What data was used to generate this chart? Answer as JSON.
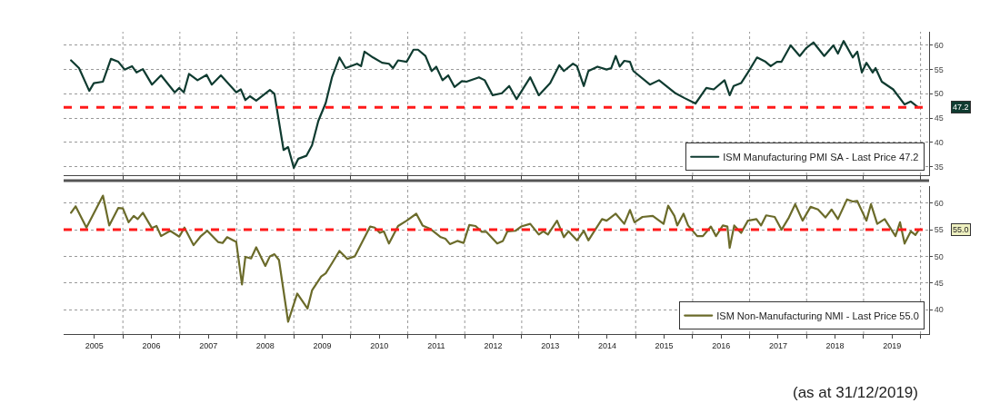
{
  "chart_data": [
    {
      "type": "line",
      "xlim": [
        2004.96,
        2020.15
      ],
      "ylim": [
        33.2,
        62.8
      ],
      "yticks": [
        35,
        40,
        45,
        50,
        55,
        60
      ],
      "tick_labels": "y",
      "grid": true,
      "legend": "bottom right",
      "line_style": "solid",
      "xticks": [
        {
          "value": 2006,
          "label": null
        },
        {
          "value": 2007,
          "label": null
        },
        {
          "value": 2008,
          "label": null
        },
        {
          "value": 2009,
          "label": null
        },
        {
          "value": 2010,
          "label": null
        },
        {
          "value": 2011,
          "label": null
        },
        {
          "value": 2012,
          "label": null
        },
        {
          "value": 2013,
          "label": null
        },
        {
          "value": 2014,
          "label": null
        },
        {
          "value": 2015,
          "label": null
        },
        {
          "value": 2016,
          "label": null
        },
        {
          "value": 2017,
          "label": null
        },
        {
          "value": 2018,
          "label": null
        },
        {
          "value": 2019,
          "label": null
        },
        {
          "value": 2020,
          "label": null
        }
      ],
      "ref_lines": [
        {
          "axis": "y",
          "value": 47.2,
          "label": "47.2",
          "color": "#ff1a1a",
          "line_style": "dashed"
        }
      ],
      "series": [
        {
          "name": "ISM Manufacturing PMI SA - Last Price 47.2",
          "color": "#0f3b30",
          "x": [
            2005.09,
            2005.23,
            2005.41,
            2005.49,
            2005.65,
            2005.79,
            2005.92,
            2006.03,
            2006.16,
            2006.24,
            2006.35,
            2006.51,
            2006.67,
            2006.91,
            2006.99,
            2007.07,
            2007.16,
            2007.31,
            2007.47,
            2007.56,
            2007.72,
            2007.99,
            2008.07,
            2008.15,
            2008.23,
            2008.34,
            2008.58,
            2008.66,
            2008.82,
            2008.9,
            2009.0,
            2009.08,
            2009.22,
            2009.32,
            2009.43,
            2009.56,
            2009.67,
            2009.8,
            2009.91,
            2010.11,
            2010.18,
            2010.24,
            2010.39,
            2010.55,
            2010.67,
            2010.74,
            2010.83,
            2010.98,
            2011.1,
            2011.18,
            2011.31,
            2011.42,
            2011.5,
            2011.61,
            2011.71,
            2011.82,
            2011.95,
            2012.03,
            2012.25,
            2012.35,
            2012.49,
            2012.65,
            2012.78,
            2012.91,
            2013.15,
            2013.3,
            2013.5,
            2013.66,
            2013.74,
            2013.9,
            2013.97,
            2014.09,
            2014.17,
            2014.33,
            2014.49,
            2014.57,
            2014.65,
            2014.72,
            2014.8,
            2014.9,
            2014.96,
            2015.25,
            2015.41,
            2015.54,
            2015.7,
            2015.86,
            2016.05,
            2016.24,
            2016.37,
            2016.56,
            2016.65,
            2016.72,
            2016.85,
            2016.97,
            2017.13,
            2017.28,
            2017.37,
            2017.48,
            2017.56,
            2017.72,
            2017.88,
            2017.99,
            2018.12,
            2018.31,
            2018.47,
            2018.55,
            2018.65,
            2018.81,
            2018.89,
            2018.97,
            2019.05,
            2019.16,
            2019.21,
            2019.32,
            2019.52,
            2019.72,
            2019.83,
            2019.96
          ],
          "values": [
            56.9,
            55.3,
            50.6,
            52.2,
            52.5,
            57.2,
            56.6,
            55.0,
            55.7,
            54.4,
            55.1,
            51.9,
            53.8,
            50.3,
            51.2,
            50.3,
            54.1,
            52.8,
            53.9,
            51.9,
            53.8,
            50.3,
            50.9,
            48.7,
            49.5,
            48.6,
            50.8,
            50.0,
            38.4,
            39.0,
            34.7,
            36.6,
            37.2,
            39.4,
            44.4,
            48.1,
            53.4,
            57.5,
            55.3,
            56.2,
            55.7,
            58.7,
            57.5,
            56.4,
            56.2,
            55.3,
            56.9,
            56.6,
            59.1,
            59.1,
            57.8,
            54.7,
            55.6,
            52.8,
            53.8,
            51.4,
            52.6,
            52.5,
            53.4,
            52.8,
            49.7,
            50.1,
            51.6,
            48.9,
            53.4,
            49.7,
            52.2,
            55.9,
            54.7,
            56.2,
            55.7,
            51.6,
            54.7,
            55.6,
            55.0,
            55.3,
            57.8,
            55.6,
            56.8,
            56.6,
            54.7,
            51.9,
            52.8,
            51.6,
            50.1,
            49.1,
            48.0,
            51.2,
            50.9,
            52.8,
            49.7,
            51.6,
            52.2,
            54.4,
            57.5,
            56.6,
            55.7,
            56.6,
            56.6,
            60.0,
            57.8,
            59.4,
            60.6,
            57.8,
            60.0,
            58.3,
            60.9,
            57.5,
            58.7,
            54.4,
            56.4,
            54.4,
            55.3,
            52.5,
            50.9,
            47.8,
            48.4,
            47.2
          ]
        }
      ]
    },
    {
      "type": "line",
      "xlim": [
        2004.96,
        2020.15
      ],
      "ylim": [
        35.4,
        63.2
      ],
      "yticks": [
        40,
        45,
        50,
        55,
        60
      ],
      "grid": true,
      "legend": "bottom right",
      "line_style": "solid",
      "xticks": [
        {
          "value": 2005.5,
          "label": "2005"
        },
        {
          "value": 2006,
          "label": null
        },
        {
          "value": 2006.5,
          "label": "2006"
        },
        {
          "value": 2007,
          "label": null
        },
        {
          "value": 2007.5,
          "label": "2007"
        },
        {
          "value": 2008,
          "label": null
        },
        {
          "value": 2008.5,
          "label": "2008"
        },
        {
          "value": 2009,
          "label": null
        },
        {
          "value": 2009.5,
          "label": "2009"
        },
        {
          "value": 2010,
          "label": null
        },
        {
          "value": 2010.5,
          "label": "2010"
        },
        {
          "value": 2011,
          "label": null
        },
        {
          "value": 2011.5,
          "label": "2011"
        },
        {
          "value": 2012,
          "label": null
        },
        {
          "value": 2012.5,
          "label": "2012"
        },
        {
          "value": 2013,
          "label": null
        },
        {
          "value": 2013.5,
          "label": "2013"
        },
        {
          "value": 2014,
          "label": null
        },
        {
          "value": 2014.5,
          "label": "2014"
        },
        {
          "value": 2015,
          "label": null
        },
        {
          "value": 2015.5,
          "label": "2015"
        },
        {
          "value": 2016,
          "label": null
        },
        {
          "value": 2016.5,
          "label": "2016"
        },
        {
          "value": 2017,
          "label": null
        },
        {
          "value": 2017.5,
          "label": "2017"
        },
        {
          "value": 2018,
          "label": null
        },
        {
          "value": 2018.5,
          "label": "2018"
        },
        {
          "value": 2019,
          "label": null
        },
        {
          "value": 2019.5,
          "label": "2019"
        },
        {
          "value": 2020,
          "label": null
        }
      ],
      "ref_lines": [
        {
          "axis": "y",
          "value": 55.0,
          "label": "55.0",
          "color": "#ff1a1a",
          "line_style": "dashed"
        }
      ],
      "annotations": [
        "(as at 31/12/2019)"
      ],
      "series": [
        {
          "name": "ISM Non-Manufacturing NMI - Last Price 55.0",
          "color": "#6b6b2a",
          "x": [
            2005.09,
            2005.17,
            2005.36,
            2005.49,
            2005.65,
            2005.76,
            2005.92,
            2006.0,
            2006.1,
            2006.19,
            2006.26,
            2006.35,
            2006.51,
            2006.59,
            2006.67,
            2006.83,
            2006.99,
            2007.08,
            2007.24,
            2007.36,
            2007.48,
            2007.67,
            2007.75,
            2007.83,
            2007.99,
            2008.09,
            2008.15,
            2008.25,
            2008.34,
            2008.5,
            2008.58,
            2008.66,
            2008.74,
            2008.9,
            2009.06,
            2009.24,
            2009.32,
            2009.48,
            2009.56,
            2009.67,
            2009.8,
            2009.94,
            2010.07,
            2010.34,
            2010.42,
            2010.51,
            2010.58,
            2010.67,
            2010.83,
            2010.98,
            2011.15,
            2011.26,
            2011.39,
            2011.58,
            2011.66,
            2011.74,
            2011.87,
            2011.98,
            2012.08,
            2012.19,
            2012.3,
            2012.38,
            2012.57,
            2012.67,
            2012.75,
            2012.89,
            2012.99,
            2013.15,
            2013.3,
            2013.38,
            2013.46,
            2013.62,
            2013.74,
            2013.82,
            2013.97,
            2014.09,
            2014.17,
            2014.41,
            2014.49,
            2014.65,
            2014.8,
            2014.9,
            2014.98,
            2015.12,
            2015.3,
            2015.49,
            2015.57,
            2015.68,
            2015.73,
            2015.84,
            2015.92,
            2016.08,
            2016.18,
            2016.32,
            2016.41,
            2016.53,
            2016.61,
            2016.65,
            2016.73,
            2016.85,
            2016.97,
            2017.12,
            2017.2,
            2017.29,
            2017.44,
            2017.56,
            2017.69,
            2017.8,
            2017.93,
            2018.07,
            2018.2,
            2018.33,
            2018.44,
            2018.55,
            2018.71,
            2018.81,
            2018.89,
            2019.05,
            2019.13,
            2019.24,
            2019.37,
            2019.56,
            2019.64,
            2019.72,
            2019.83,
            2019.91,
            2019.97
          ],
          "values": [
            58.2,
            59.4,
            55.4,
            58.1,
            61.4,
            55.8,
            59.1,
            59.0,
            56.4,
            57.6,
            57.0,
            58.2,
            55.3,
            55.7,
            53.8,
            54.8,
            53.7,
            55.4,
            52.1,
            53.7,
            54.8,
            52.7,
            52.5,
            53.6,
            52.7,
            44.7,
            49.9,
            49.6,
            51.7,
            48.2,
            50.0,
            50.4,
            49.3,
            37.7,
            43.0,
            40.2,
            43.6,
            46.2,
            46.8,
            48.7,
            51.0,
            49.5,
            50.0,
            55.6,
            55.4,
            54.4,
            54.7,
            52.4,
            55.7,
            56.7,
            58.0,
            55.8,
            55.2,
            53.6,
            53.3,
            52.3,
            52.9,
            52.5,
            55.9,
            55.7,
            54.6,
            54.6,
            52.4,
            52.9,
            54.7,
            54.8,
            55.6,
            56.1,
            54.1,
            54.7,
            54.1,
            56.7,
            53.6,
            54.7,
            53.0,
            54.8,
            53.0,
            57.0,
            56.7,
            58.0,
            56.1,
            58.7,
            56.4,
            57.4,
            57.6,
            56.1,
            59.5,
            57.6,
            55.8,
            58.0,
            55.8,
            53.8,
            53.8,
            55.6,
            53.8,
            55.8,
            55.6,
            51.6,
            55.8,
            54.4,
            56.7,
            57.0,
            55.8,
            57.7,
            57.4,
            55.0,
            57.3,
            59.8,
            56.7,
            59.3,
            58.8,
            57.3,
            58.8,
            57.0,
            60.7,
            60.3,
            60.4,
            56.7,
            59.8,
            56.1,
            57.0,
            53.8,
            56.4,
            52.4,
            54.7,
            54.0,
            55.0
          ]
        }
      ]
    }
  ]
}
